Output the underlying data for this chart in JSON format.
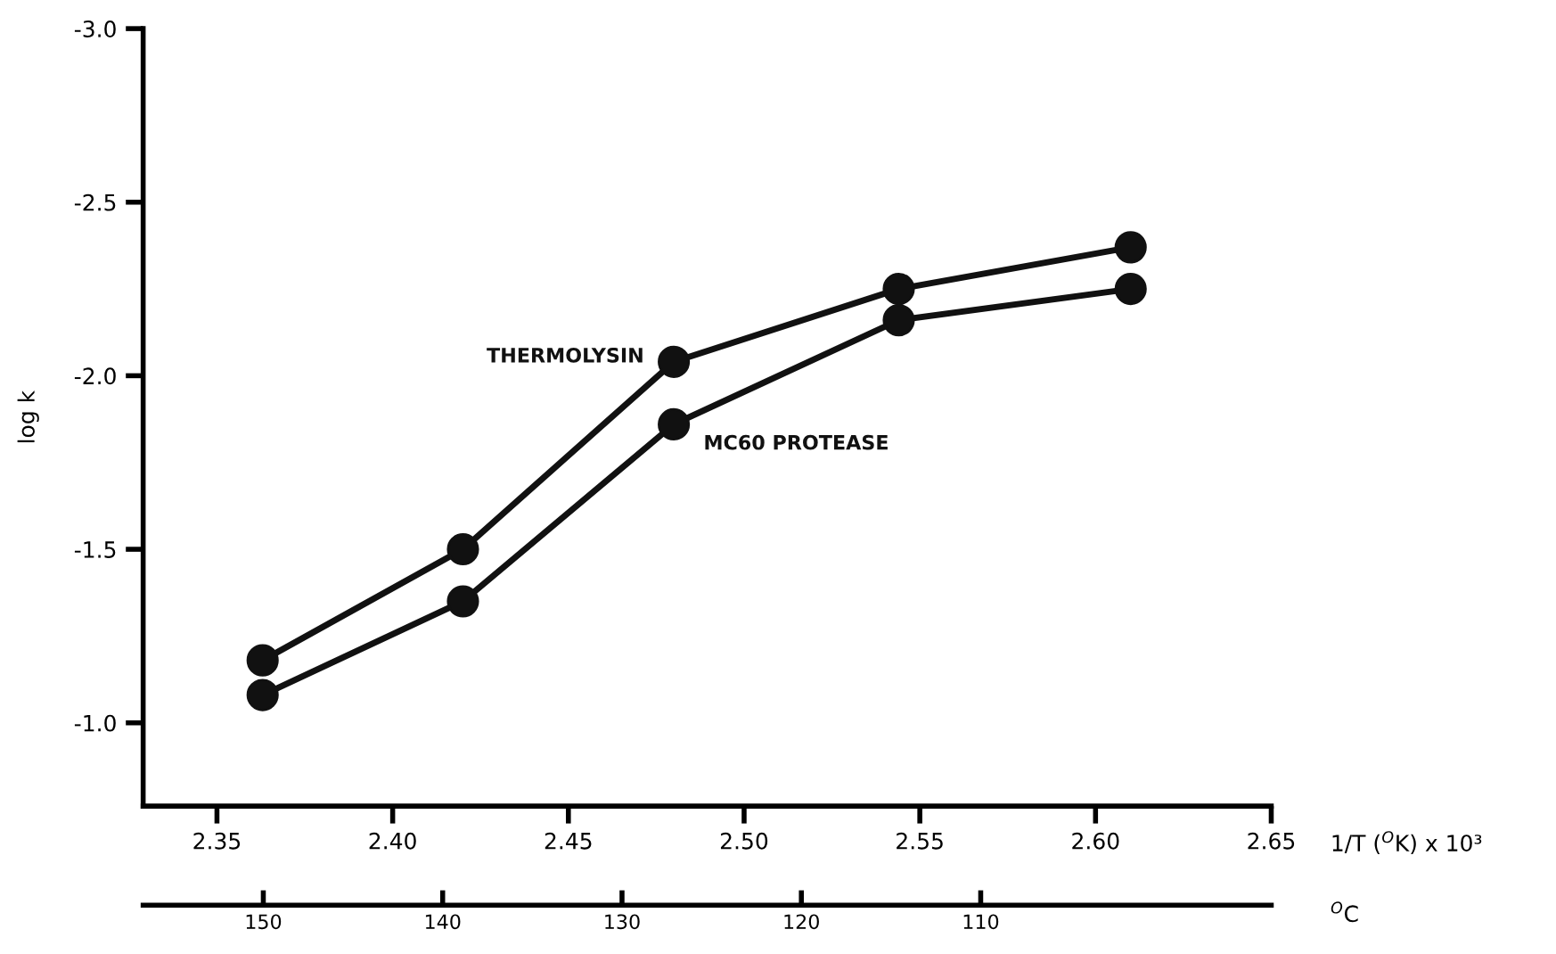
{
  "chart_data": {
    "type": "line",
    "ylabel": "log k",
    "xlabel": "1/T ($^{O}$K) x 10³",
    "x2label": "$^{O}$C",
    "x": [
      2.363,
      2.42,
      2.48,
      2.544,
      2.61
    ],
    "series": [
      {
        "name": "THERMOLYSIN",
        "color": "#111111",
        "values": [
          -1.18,
          -1.5,
          -2.04,
          -2.25,
          -2.37
        ]
      },
      {
        "name": "MC60 PROTEASE",
        "color": "#111111",
        "values": [
          -1.08,
          -1.35,
          -1.86,
          -2.16,
          -2.25
        ]
      }
    ],
    "xlim": [
      2.329,
      2.65
    ],
    "xticks": [
      2.35,
      {
        "value": 2.4,
        "label": "2.40"
      },
      2.45,
      {
        "value": 2.5,
        "label": "2.50"
      },
      2.55,
      {
        "value": 2.6,
        "label": "2.60"
      },
      2.65
    ],
    "x2lim": [
      156.7,
      93.8
    ],
    "x2ticks": [
      150,
      140,
      130,
      120,
      110
    ],
    "ylim": [
      -0.76,
      -3.0
    ],
    "yticks": [
      {
        "value": -1.0,
        "label": "-1.0"
      },
      -1.5,
      {
        "value": -2.0,
        "label": "-2.0"
      },
      -2.5,
      {
        "value": -3.0,
        "label": "-3.0"
      }
    ],
    "marker": "circle",
    "line_style": "solid",
    "grid": false,
    "legend": false
  }
}
